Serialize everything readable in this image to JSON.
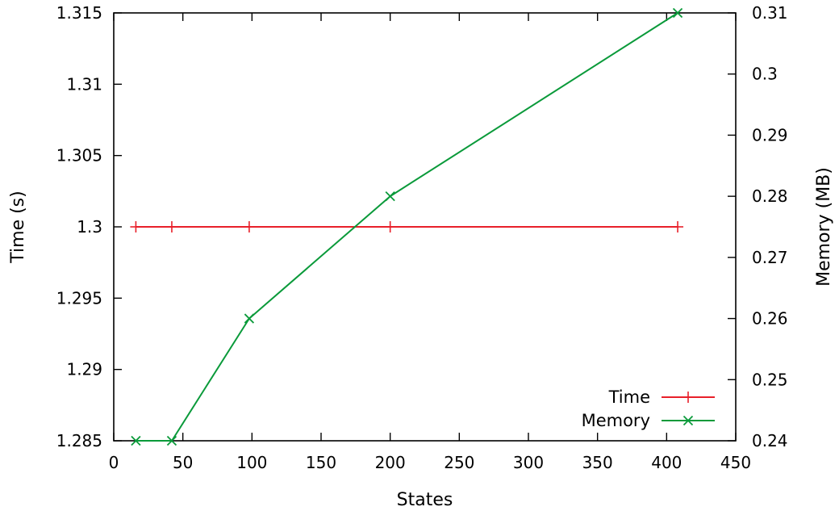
{
  "chart_data": {
    "type": "line",
    "xlabel": "States",
    "ylabel_left": "Time (s)",
    "ylabel_right": "Memory (MB)",
    "xlim": [
      0,
      450
    ],
    "ylim_left": [
      1.285,
      1.315
    ],
    "ylim_right": [
      0.24,
      0.31
    ],
    "x_ticks": [
      "0",
      "50",
      "100",
      "150",
      "200",
      "250",
      "300",
      "350",
      "400",
      "450"
    ],
    "y_left_ticks": [
      "1.285",
      "1.29",
      "1.295",
      "1.3",
      "1.305",
      "1.31",
      "1.315"
    ],
    "y_right_ticks": [
      "0.24",
      "0.25",
      "0.26",
      "0.27",
      "0.28",
      "0.29",
      "0.3",
      "0.31"
    ],
    "grid": false,
    "legend_position": "bottom-right",
    "series": [
      {
        "name": "Time",
        "axis": "left",
        "color": "#e8202a",
        "marker": "plus",
        "x": [
          16,
          42,
          98,
          200,
          408
        ],
        "y": [
          1.3,
          1.3,
          1.3,
          1.3,
          1.3
        ]
      },
      {
        "name": "Memory",
        "axis": "right",
        "color": "#0a9a3a",
        "marker": "cross",
        "x": [
          16,
          42,
          98,
          200,
          408
        ],
        "y": [
          0.24,
          0.24,
          0.26,
          0.28,
          0.31
        ]
      }
    ]
  }
}
